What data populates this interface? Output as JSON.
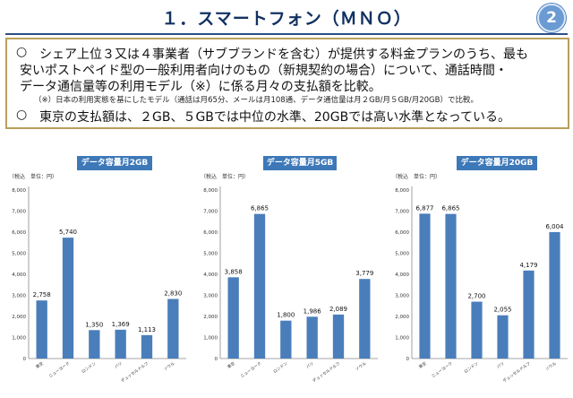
{
  "header": {
    "title": "１．スマートフォン（ＭＮＯ）",
    "page_number": "2"
  },
  "summary": {
    "bullet": "○",
    "line1": "シェア上位３又は４事業者（サブブランドを含む）が提供する料金プランのうち、最も",
    "line2": "安いポストペイド型の一般利用者向けのもの（新規契約の場合）について、通話時間・",
    "line3": "データ通信量等の利用モデル（※）に係る月々の支払額を比較。",
    "note": "（※）日本の利用実態を基にしたモデル（通話は月65分、メールは月108通、データ通信量は月２GB/月５GB/月20GB）で比較。",
    "line4": "東京の支払額は、２GB、５GBでは中位の水準、20GBでは高い水準となっている。"
  },
  "colors": {
    "bar": "#4a7ebb",
    "panel_header": "#3d78b8",
    "title_text": "#123262"
  },
  "chart_data": [
    {
      "type": "bar",
      "title": "データ容量月2GB",
      "unit_label": "（税込　単位：円）",
      "categories": [
        "東京",
        "ニューヨーク",
        "ロンドン",
        "パリ",
        "デュッセルドルフ",
        "ソウル"
      ],
      "values": [
        2758,
        5740,
        1350,
        1369,
        1113,
        2830
      ],
      "value_labels": [
        "2,758",
        "5,740",
        "1,350",
        "1,369",
        "1,113",
        "2,830"
      ],
      "ylim": [
        0,
        8000
      ],
      "yticks": [
        "0",
        "1,000",
        "2,000",
        "3,000",
        "4,000",
        "5,000",
        "6,000",
        "7,000",
        "8,000"
      ]
    },
    {
      "type": "bar",
      "title": "データ容量月5GB",
      "unit_label": "（税込　単位：円）",
      "categories": [
        "東京",
        "ニューヨーク",
        "ロンドン",
        "パリ",
        "デュッセルドルフ",
        "ソウル"
      ],
      "values": [
        3858,
        6865,
        1800,
        1986,
        2089,
        3779
      ],
      "value_labels": [
        "3,858",
        "6,865",
        "1,800",
        "1,986",
        "2,089",
        "3,779"
      ],
      "ylim": [
        0,
        8000
      ],
      "yticks": [
        "0",
        "1,000",
        "2,000",
        "3,000",
        "4,000",
        "5,000",
        "6,000",
        "7,000",
        "8,000"
      ]
    },
    {
      "type": "bar",
      "title": "データ容量月20GB",
      "unit_label": "（税込　単位：円）",
      "categories": [
        "東京",
        "ニューヨーク",
        "ロンドン",
        "パリ",
        "デュッセルドルフ",
        "ソウル"
      ],
      "values": [
        6877,
        6865,
        2700,
        2055,
        4179,
        6004
      ],
      "value_labels": [
        "6,877",
        "6,865",
        "2,700",
        "2,055",
        "4,179",
        "6,004"
      ],
      "ylim": [
        0,
        8000
      ],
      "yticks": [
        "0",
        "1,000",
        "2,000",
        "3,000",
        "4,000",
        "5,000",
        "6,000",
        "7,000",
        "8,000"
      ]
    }
  ]
}
